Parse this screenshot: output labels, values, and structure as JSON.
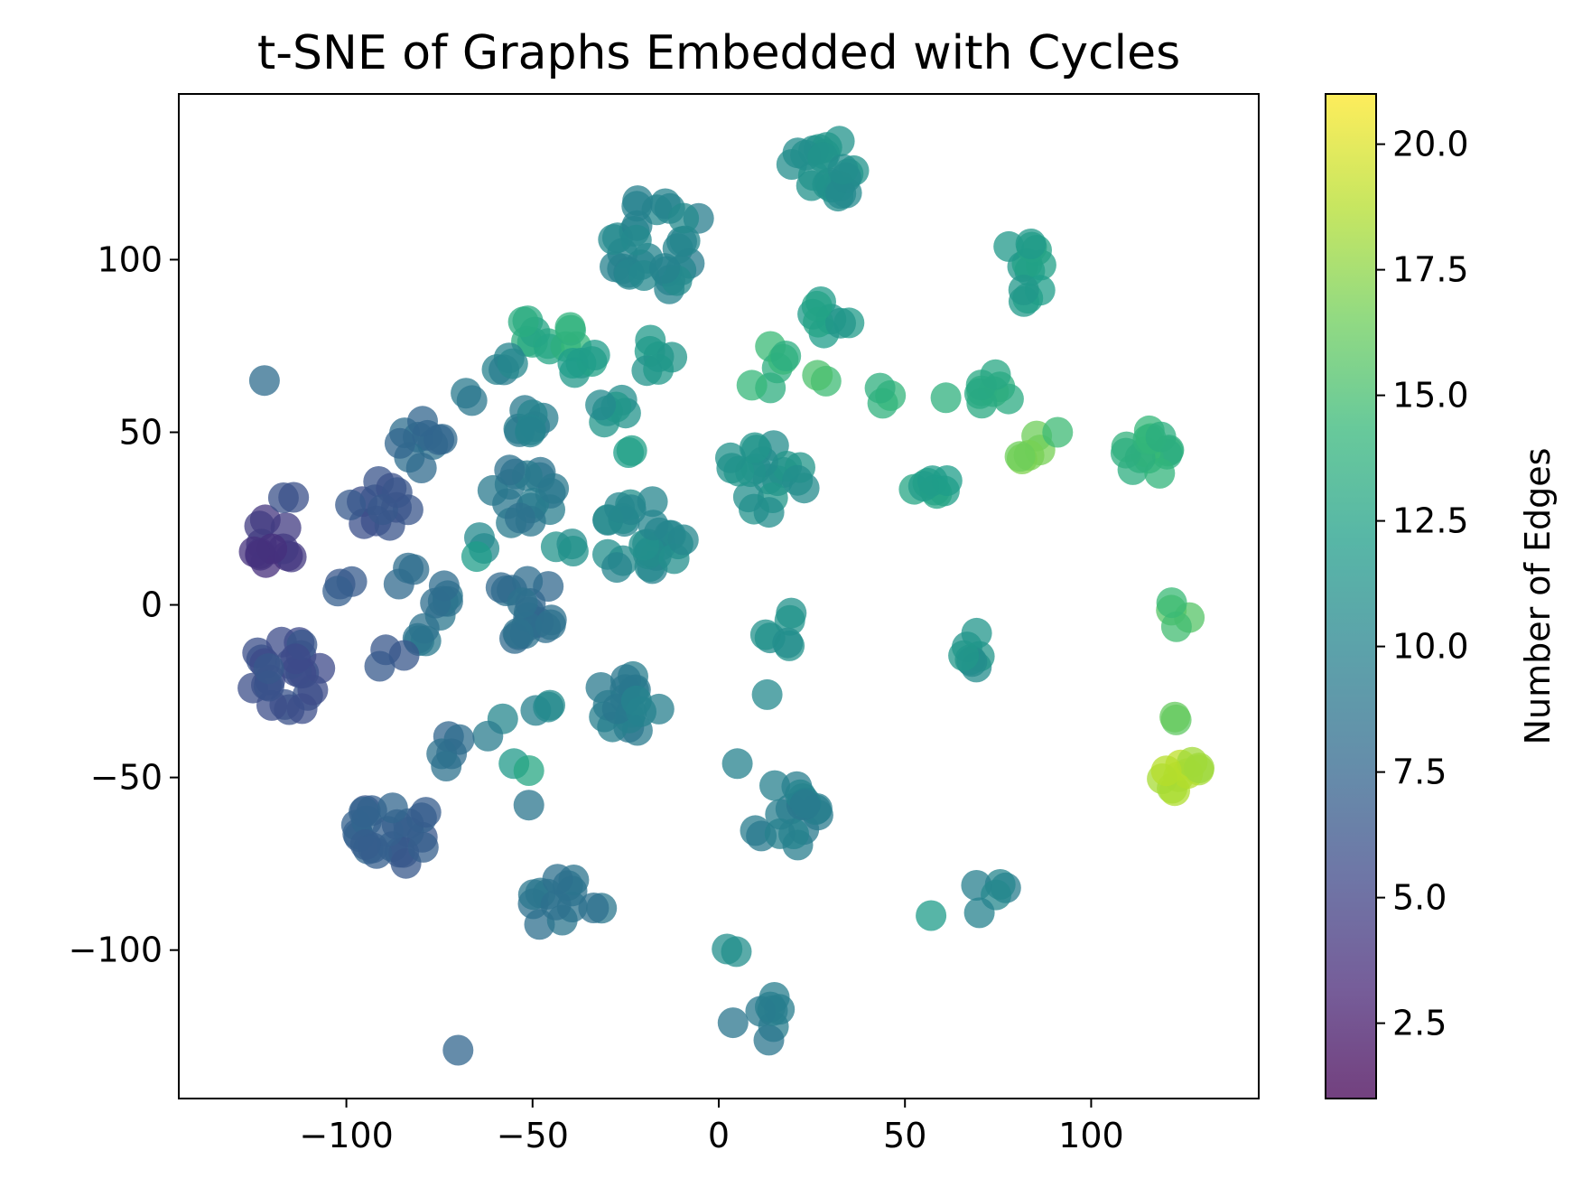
{
  "chart_data": {
    "type": "scatter",
    "title": "t-SNE of Graphs Embedded with Cycles",
    "xlabel": "",
    "ylabel": "",
    "xlim": [
      -145,
      145
    ],
    "ylim": [
      -143,
      148
    ],
    "x_ticks": [
      -100,
      -50,
      0,
      50,
      100
    ],
    "x_tick_labels": [
      "−100",
      "−50",
      "0",
      "50",
      "100"
    ],
    "y_ticks": [
      -100,
      -50,
      0,
      50,
      100
    ],
    "y_tick_labels": [
      "−100",
      "−50",
      "0",
      "50",
      "100"
    ],
    "grid": false,
    "colorbar": {
      "label": "Number of Edges",
      "range": [
        1,
        21
      ],
      "ticks": [
        2.5,
        5.0,
        7.5,
        10.0,
        12.5,
        15.0,
        17.5,
        20.0
      ],
      "tick_labels": [
        "2.5",
        "5.0",
        "7.5",
        "10.0",
        "12.5",
        "15.0",
        "17.5",
        "20.0"
      ],
      "colormap": "viridis",
      "colormap_stops": [
        "#440154",
        "#482878",
        "#3e4989",
        "#31688e",
        "#26828e",
        "#1f9e89",
        "#35b779",
        "#6ece58",
        "#b5de2b",
        "#fde725"
      ]
    },
    "marker_alpha": 0.75,
    "clusters": [
      {
        "x": 28,
        "y": 126,
        "count": 22,
        "spread": 10,
        "edges": 11
      },
      {
        "x": -17,
        "y": 105,
        "count": 30,
        "spread": 14,
        "edges": 10
      },
      {
        "x": 84,
        "y": 96,
        "count": 12,
        "spread": 10,
        "edges": 12
      },
      {
        "x": 30,
        "y": 84,
        "count": 8,
        "spread": 7,
        "edges": 12
      },
      {
        "x": -17,
        "y": 72,
        "count": 6,
        "spread": 5,
        "edges": 11.5
      },
      {
        "x": -50,
        "y": 77,
        "count": 7,
        "spread": 6,
        "edges": 13
      },
      {
        "x": -40,
        "y": 78,
        "count": 4,
        "spread": 4,
        "edges": 14
      },
      {
        "x": -36,
        "y": 70,
        "count": 5,
        "spread": 4,
        "edges": 12
      },
      {
        "x": -58,
        "y": 70,
        "count": 4,
        "spread": 3,
        "edges": 10
      },
      {
        "x": -68,
        "y": 60,
        "count": 2,
        "spread": 3,
        "edges": 9
      },
      {
        "x": -52,
        "y": 55,
        "count": 8,
        "spread": 6,
        "edges": 9.5
      },
      {
        "x": -29,
        "y": 56,
        "count": 6,
        "spread": 5,
        "edges": 11
      },
      {
        "x": -26,
        "y": 45,
        "count": 2,
        "spread": 3,
        "edges": 12
      },
      {
        "x": -78,
        "y": 46,
        "count": 10,
        "spread": 8,
        "edges": 8
      },
      {
        "x": 13,
        "y": 38,
        "count": 20,
        "spread": 12,
        "edges": 11
      },
      {
        "x": -53,
        "y": 32,
        "count": 16,
        "spread": 9,
        "edges": 9
      },
      {
        "x": -20,
        "y": 19,
        "count": 26,
        "spread": 12,
        "edges": 10.5
      },
      {
        "x": -91,
        "y": 28,
        "count": 12,
        "spread": 8,
        "edges": 6
      },
      {
        "x": -120,
        "y": 18,
        "count": 12,
        "spread": 7,
        "edges": 4
      },
      {
        "x": -116,
        "y": 30,
        "count": 2,
        "spread": 3,
        "edges": 6
      },
      {
        "x": -53,
        "y": -1,
        "count": 18,
        "spread": 10,
        "edges": 8
      },
      {
        "x": -73,
        "y": 1,
        "count": 6,
        "spread": 5,
        "edges": 8.5
      },
      {
        "x": -99,
        "y": 4,
        "count": 3,
        "spread": 4,
        "edges": 7
      },
      {
        "x": -83,
        "y": 8,
        "count": 3,
        "spread": 5,
        "edges": 8
      },
      {
        "x": -82,
        "y": -9,
        "count": 4,
        "spread": 5,
        "edges": 9
      },
      {
        "x": -88,
        "y": -16,
        "count": 3,
        "spread": 4,
        "edges": 7
      },
      {
        "x": -62,
        "y": 19,
        "count": 2,
        "spread": 3,
        "edges": 11
      },
      {
        "x": -65,
        "y": 14,
        "count": 1,
        "spread": 0,
        "edges": 12
      },
      {
        "x": -40,
        "y": 17,
        "count": 3,
        "spread": 4,
        "edges": 11
      },
      {
        "x": -115,
        "y": -20,
        "count": 24,
        "spread": 11,
        "edges": 6
      },
      {
        "x": -24,
        "y": -28,
        "count": 18,
        "spread": 9,
        "edges": 9.5
      },
      {
        "x": -48,
        "y": -29,
        "count": 3,
        "spread": 3,
        "edges": 10
      },
      {
        "x": -58,
        "y": -33,
        "count": 1,
        "spread": 0,
        "edges": 10
      },
      {
        "x": -62,
        "y": -38,
        "count": 1,
        "spread": 0,
        "edges": 9
      },
      {
        "x": -72,
        "y": -42,
        "count": 5,
        "spread": 5,
        "edges": 8
      },
      {
        "x": -55,
        "y": -46,
        "count": 1,
        "spread": 0,
        "edges": 12
      },
      {
        "x": -51,
        "y": -48,
        "count": 1,
        "spread": 0,
        "edges": 13
      },
      {
        "x": -51,
        "y": -58,
        "count": 1,
        "spread": 0,
        "edges": 9
      },
      {
        "x": -88,
        "y": -65,
        "count": 24,
        "spread": 11,
        "edges": 7
      },
      {
        "x": 18,
        "y": -8,
        "count": 6,
        "spread": 6,
        "edges": 11
      },
      {
        "x": 13,
        "y": -26,
        "count": 1,
        "spread": 0,
        "edges": 11
      },
      {
        "x": 5,
        "y": -46,
        "count": 1,
        "spread": 0,
        "edges": 10
      },
      {
        "x": 17,
        "y": -61,
        "count": 18,
        "spread": 10,
        "edges": 9.5
      },
      {
        "x": -41,
        "y": -86,
        "count": 14,
        "spread": 10,
        "edges": 8.5
      },
      {
        "x": 3,
        "y": -100,
        "count": 2,
        "spread": 2,
        "edges": 11
      },
      {
        "x": 11,
        "y": -120,
        "count": 8,
        "spread": 8,
        "edges": 9
      },
      {
        "x": -70,
        "y": -129,
        "count": 1,
        "spread": 0,
        "edges": 8
      },
      {
        "x": -122,
        "y": 65,
        "count": 1,
        "spread": 0,
        "edges": 8
      },
      {
        "x": 14,
        "y": 68,
        "count": 6,
        "spread": 7,
        "edges": 14
      },
      {
        "x": 29,
        "y": 65,
        "count": 2,
        "spread": 3,
        "edges": 15
      },
      {
        "x": 44,
        "y": 60,
        "count": 3,
        "spread": 3,
        "edges": 14
      },
      {
        "x": 61,
        "y": 60,
        "count": 1,
        "spread": 0,
        "edges": 14
      },
      {
        "x": 74,
        "y": 62,
        "count": 8,
        "spread": 5,
        "edges": 13.5
      },
      {
        "x": 84,
        "y": 46,
        "count": 5,
        "spread": 5,
        "edges": 16.5
      },
      {
        "x": 91,
        "y": 50,
        "count": 1,
        "spread": 0,
        "edges": 15
      },
      {
        "x": 57,
        "y": 35,
        "count": 8,
        "spread": 5,
        "edges": 12.5
      },
      {
        "x": 114,
        "y": 43,
        "count": 14,
        "spread": 8,
        "edges": 14
      },
      {
        "x": 66,
        "y": -13,
        "count": 7,
        "spread": 6,
        "edges": 11
      },
      {
        "x": 123,
        "y": -3,
        "count": 4,
        "spread": 4,
        "edges": 15
      },
      {
        "x": 124,
        "y": -33,
        "count": 2,
        "spread": 3,
        "edges": 16
      },
      {
        "x": 125,
        "y": -51,
        "count": 10,
        "spread": 6,
        "edges": 18.5
      },
      {
        "x": 72,
        "y": -84,
        "count": 5,
        "spread": 6,
        "edges": 10
      },
      {
        "x": 57,
        "y": -90,
        "count": 1,
        "spread": 0,
        "edges": 12
      }
    ]
  }
}
